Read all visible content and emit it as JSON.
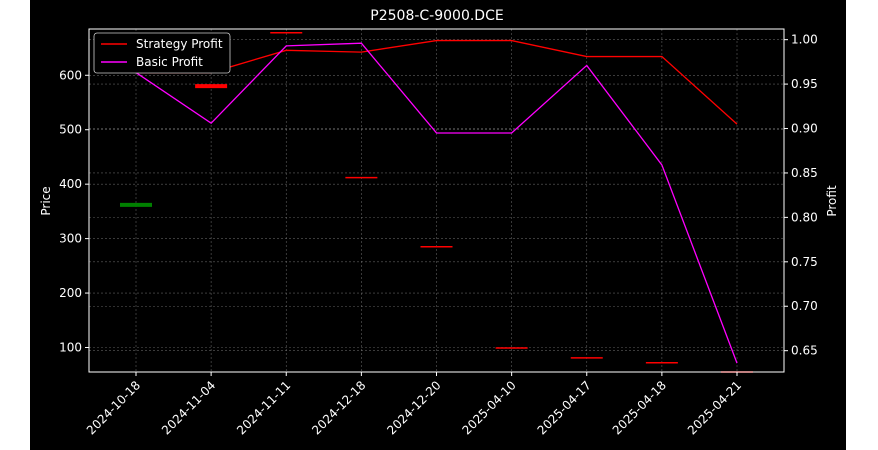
{
  "chart_data": {
    "type": "line",
    "title": "P2508-C-9000.DCE",
    "ylabel": "Price",
    "y2label": "Profit",
    "categories": [
      "2024-10-18",
      "2024-11-04",
      "2024-11-11",
      "2024-12-18",
      "2024-12-20",
      "2025-04-10",
      "2025-04-17",
      "2025-04-18",
      "2025-04-21"
    ],
    "ylim": [
      55,
      685
    ],
    "y2lim": [
      0.626,
      1.012
    ],
    "yticks": [
      100,
      200,
      300,
      400,
      500,
      600
    ],
    "y2ticks": [
      "0.65",
      "0.70",
      "0.75",
      "0.80",
      "0.85",
      "0.90",
      "0.95",
      "1.00"
    ],
    "grid": true,
    "legend_position": "top-left",
    "background": "#000000",
    "colors": {
      "strategy": "#ff0000",
      "basic": "#ff00ff",
      "buy": "#008000",
      "sell": "#ff0000"
    },
    "series": [
      {
        "name": "Strategy Profit",
        "axis": "right",
        "color": "#ff0000",
        "values": [
          0.963,
          0.963,
          0.988,
          0.986,
          0.999,
          0.999,
          0.981,
          0.981,
          0.905
        ]
      },
      {
        "name": "Basic Profit",
        "axis": "right",
        "color": "#ff00ff",
        "values": [
          0.963,
          0.906,
          0.993,
          0.996,
          0.895,
          0.895,
          0.971,
          0.859,
          0.636
        ]
      }
    ],
    "price_marks": [
      {
        "category": "2024-10-18",
        "price": 362,
        "kind": "buy"
      },
      {
        "category": "2024-11-04",
        "price": 580,
        "kind": "sell"
      },
      {
        "category": "2024-11-11",
        "price": 678,
        "kind": "sell"
      },
      {
        "category": "2024-12-18",
        "price": 412,
        "kind": "sell"
      },
      {
        "category": "2024-12-20",
        "price": 285,
        "kind": "sell"
      },
      {
        "category": "2025-04-10",
        "price": 99,
        "kind": "sell"
      },
      {
        "category": "2025-04-17",
        "price": 81,
        "kind": "sell"
      },
      {
        "category": "2025-04-18",
        "price": 72,
        "kind": "sell"
      },
      {
        "category": "2025-04-21",
        "price": 55,
        "kind": "sell"
      }
    ]
  }
}
